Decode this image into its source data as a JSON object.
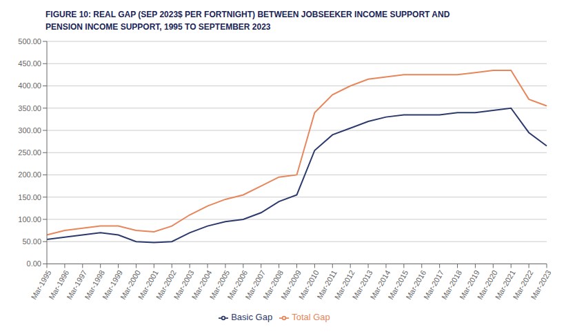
{
  "chart_data": {
    "type": "line",
    "title": "FIGURE 10: REAL GAP (SEP 2023$ PER FORTNIGHT) BETWEEN JOBSEEKER INCOME SUPPORT AND",
    "subtitle": "PENSION INCOME SUPPORT, 1995 TO SEPTEMBER 2023",
    "categories": [
      "Mar-1995",
      "Mar-1996",
      "Mar-1997",
      "Mar-1998",
      "Mar-1999",
      "Mar-2000",
      "Mar-2001",
      "Mar-2002",
      "Mar-2003",
      "Mar-2004",
      "Mar-2005",
      "Mar-2006",
      "Mar-2007",
      "Mar-2008",
      "Mar-2009",
      "Mar-2010",
      "Mar-2011",
      "Mar-2012",
      "Mar-2013",
      "Mar-2014",
      "Mar-2015",
      "Mar-2016",
      "Mar-2017",
      "Mar-2018",
      "Mar-2019",
      "Mar-2020",
      "Mar-2021",
      "Mar-2022",
      "Mar-2023"
    ],
    "series": [
      {
        "name": "Basic Gap",
        "color": "#2b3a6b",
        "values": [
          55,
          60,
          65,
          70,
          65,
          50,
          48,
          50,
          70,
          85,
          95,
          100,
          115,
          140,
          155,
          255,
          290,
          305,
          320,
          330,
          335,
          335,
          335,
          340,
          340,
          345,
          350,
          295,
          265
        ]
      },
      {
        "name": "Total Gap",
        "color": "#e8855a",
        "values": [
          65,
          75,
          80,
          85,
          85,
          75,
          72,
          85,
          110,
          130,
          145,
          155,
          175,
          195,
          200,
          340,
          380,
          400,
          415,
          420,
          425,
          425,
          425,
          425,
          430,
          435,
          435,
          370,
          355
        ]
      }
    ],
    "ylim": [
      0,
      500
    ],
    "yticks": [
      {
        "value": 0,
        "label": "0.00"
      },
      {
        "value": 50,
        "label": "50.00"
      },
      {
        "value": 100,
        "label": "100.00"
      },
      {
        "value": 150,
        "label": "150.00"
      },
      {
        "value": 200,
        "label": "200.00"
      },
      {
        "value": 250,
        "label": "250.00"
      },
      {
        "value": 300,
        "label": "300.00"
      },
      {
        "value": 350,
        "label": "350.00"
      },
      {
        "value": 400,
        "label": "400.00"
      },
      {
        "value": 450,
        "label": "450.00"
      },
      {
        "value": 500,
        "label": "500.00"
      }
    ],
    "grid": true
  }
}
